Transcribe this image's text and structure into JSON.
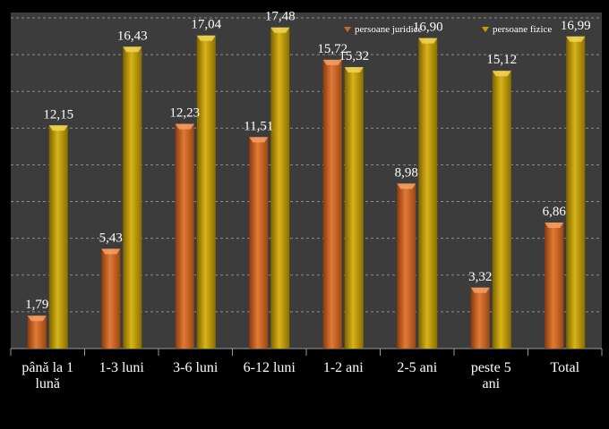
{
  "chart_data": {
    "type": "bar",
    "title": "",
    "xlabel": "",
    "ylabel": "",
    "categories": [
      [
        "până la 1",
        "lună"
      ],
      [
        "1-3 luni"
      ],
      [
        "3-6 luni"
      ],
      [
        "6-12 luni"
      ],
      [
        "1-2 ani"
      ],
      [
        "2-5 ani"
      ],
      [
        "peste 5",
        "ani"
      ],
      [
        "Total"
      ]
    ],
    "series": [
      {
        "name": "persoane juridice",
        "values": [
          1.79,
          5.43,
          12.23,
          11.51,
          15.72,
          8.98,
          3.32,
          6.86
        ],
        "labels": [
          "1,79",
          "5,43",
          "12,23",
          "11,51",
          "15,72",
          "8,98",
          "3,32",
          "6,86"
        ],
        "color": "#d2691e"
      },
      {
        "name": "persoane fizice",
        "values": [
          12.15,
          16.43,
          17.04,
          17.48,
          15.32,
          16.9,
          15.12,
          16.99
        ],
        "labels": [
          "12,15",
          "16,43",
          "17,04",
          "17,48",
          "15,32",
          "16,90",
          "15,12",
          "16,99"
        ],
        "color": "#c9a000"
      }
    ],
    "ylim": [
      0,
      18
    ],
    "grid": true,
    "legend": "top-right",
    "colors": {
      "background": "#000000",
      "plot_area": "#3c3c3c",
      "grid": "#8c8c8c",
      "text": "#ffffff"
    }
  }
}
